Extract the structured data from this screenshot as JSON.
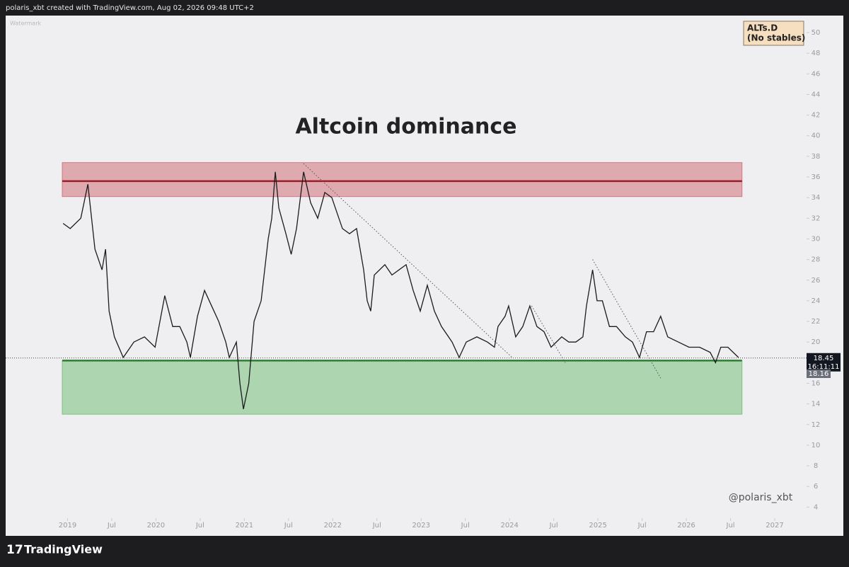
{
  "header": "polaris_xbt created with TradingView.com, Aug 02, 2026 09:48 UTC+2",
  "footer": "TradingView",
  "chart_data": {
    "type": "line",
    "title": "Altcoin dominance",
    "watermark": "Watermark",
    "symbol": "ALTs.D",
    "symbol_note": "(No stables)",
    "signature": "@polaris_xbt",
    "last_price": 18.45,
    "countdown": "16:11:11",
    "prev_price": 18.16,
    "xlim": [
      2018.3,
      2027.36
    ],
    "ylim": [
      3.2,
      51.1
    ],
    "xticks": [
      {
        "value": 2019,
        "label": "2019"
      },
      {
        "value": 2019.5,
        "label": "Jul"
      },
      {
        "value": 2020,
        "label": "2020"
      },
      {
        "value": 2020.5,
        "label": "Jul"
      },
      {
        "value": 2021,
        "label": "2021"
      },
      {
        "value": 2021.5,
        "label": "Jul"
      },
      {
        "value": 2022,
        "label": "2022"
      },
      {
        "value": 2022.5,
        "label": "Jul"
      },
      {
        "value": 2023,
        "label": "2023"
      },
      {
        "value": 2023.5,
        "label": "Jul"
      },
      {
        "value": 2024,
        "label": "2024"
      },
      {
        "value": 2024.5,
        "label": "Jul"
      },
      {
        "value": 2025,
        "label": "2025"
      },
      {
        "value": 2025.5,
        "label": "Jul"
      },
      {
        "value": 2026,
        "label": "2026"
      },
      {
        "value": 2026.5,
        "label": "Jul"
      },
      {
        "value": 2027,
        "label": "2027"
      }
    ],
    "yticks": [
      4,
      6,
      8,
      10,
      12,
      14,
      16,
      18,
      20,
      22,
      24,
      26,
      28,
      30,
      32,
      34,
      36,
      38,
      40,
      42,
      44,
      46,
      48,
      50
    ],
    "series": [
      {
        "name": "ALTs.D",
        "color": "#1b1b1b",
        "x": [
          2018.95,
          2019.03,
          2019.15,
          2019.23,
          2019.31,
          2019.39,
          2019.43,
          2019.47,
          2019.53,
          2019.63,
          2019.75,
          2019.87,
          2019.99,
          2020.1,
          2020.19,
          2020.27,
          2020.35,
          2020.39,
          2020.47,
          2020.55,
          2020.63,
          2020.71,
          2020.79,
          2020.83,
          2020.91,
          2020.95,
          2020.99,
          2021.05,
          2021.11,
          2021.19,
          2021.27,
          2021.31,
          2021.35,
          2021.39,
          2021.47,
          2021.53,
          2021.59,
          2021.67,
          2021.75,
          2021.83,
          2021.91,
          2021.99,
          2022.03,
          2022.11,
          2022.19,
          2022.27,
          2022.35,
          2022.39,
          2022.43,
          2022.47,
          2022.59,
          2022.67,
          2022.75,
          2022.83,
          2022.91,
          2022.99,
          2023.07,
          2023.15,
          2023.23,
          2023.35,
          2023.43,
          2023.51,
          2023.63,
          2023.75,
          2023.83,
          2023.87,
          2023.95,
          2023.99,
          2024.07,
          2024.15,
          2024.23,
          2024.31,
          2024.39,
          2024.47,
          2024.59,
          2024.67,
          2024.75,
          2024.83,
          2024.87,
          2024.94,
          2024.99,
          2025.05,
          2025.13,
          2025.21,
          2025.31,
          2025.39,
          2025.47,
          2025.55,
          2025.63,
          2025.71,
          2025.79,
          2025.91,
          2026.03,
          2026.15,
          2026.27,
          2026.33,
          2026.39,
          2026.47,
          2026.59
        ],
        "values": [
          31.5,
          31,
          32,
          35.3,
          29,
          27,
          29,
          23,
          20.5,
          18.5,
          20,
          20.5,
          19.5,
          24.5,
          21.5,
          21.5,
          20,
          18.5,
          22.5,
          25,
          23.5,
          22,
          20,
          18.5,
          20,
          16,
          13.5,
          16,
          22,
          24,
          30,
          32,
          36.5,
          33,
          30.5,
          28.5,
          31,
          36.5,
          33.5,
          32,
          34.5,
          34,
          33,
          31,
          30.5,
          31,
          27,
          24,
          23,
          26.5,
          27.5,
          26.5,
          27,
          27.5,
          25,
          23,
          25.5,
          23,
          21.5,
          20,
          18.5,
          20,
          20.5,
          20,
          19.5,
          21.5,
          22.5,
          23.5,
          20.5,
          21.5,
          23.5,
          21.5,
          21,
          19.5,
          20.5,
          20,
          20,
          20.5,
          23.5,
          27,
          24,
          24,
          21.5,
          21.5,
          20.5,
          20,
          18.5,
          21,
          21,
          22.5,
          20.5,
          20,
          19.5,
          19.5,
          19,
          18,
          19.5,
          19.5,
          18.5
        ]
      }
    ],
    "zones": [
      {
        "ymin": 34.1,
        "ymax": 37.4,
        "line": 35.6,
        "xlim": [
          2018.94,
          2026.63
        ],
        "color": "#c8434e"
      },
      {
        "ymin": 13,
        "ymax": 18.2,
        "line": 18.2,
        "xlim": [
          2018.94,
          2026.63
        ],
        "color": "#4caf50"
      }
    ],
    "trendlines": [
      {
        "x": [
          2021.67,
          2024.03
        ],
        "values": [
          37.3,
          18.5
        ]
      },
      {
        "x": [
          2024.94,
          2025.71
        ],
        "values": [
          28,
          16.5
        ]
      },
      {
        "x": [
          2024.25,
          2024.63
        ],
        "values": [
          23.5,
          18
        ]
      }
    ]
  }
}
